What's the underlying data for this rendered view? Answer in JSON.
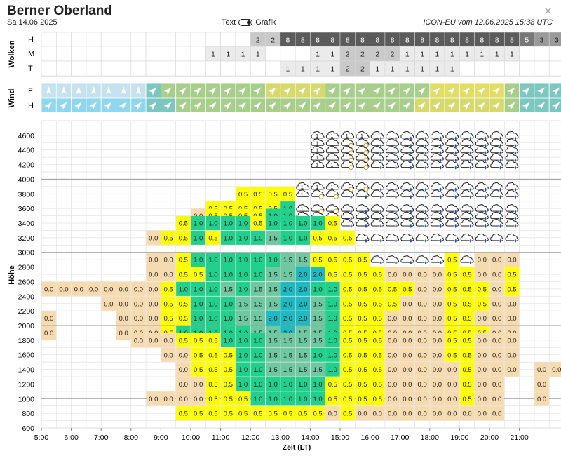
{
  "header": {
    "title": "Berner Oberland",
    "date": "Sa 14.06.2025",
    "toggle_left": "Text",
    "toggle_right": "Grafik",
    "model": "ICON-EU vom 12.06.2025 15:38 UTC",
    "close_label": "×"
  },
  "clouds": {
    "section_label": "Wolken",
    "rows": [
      {
        "label": "H",
        "values": [
          "",
          "",
          "",
          "",
          "",
          "",
          "",
          "",
          "",
          "",
          "",
          "",
          "",
          "",
          "2",
          "2",
          "8",
          "8",
          "8",
          "8",
          "8",
          "8",
          "8",
          "8",
          "8",
          "8",
          "8",
          "8",
          "8",
          "8",
          "8",
          "8",
          "5",
          "3",
          "3"
        ]
      },
      {
        "label": "M",
        "values": [
          "",
          "",
          "",
          "",
          "",
          "",
          "",
          "",
          "",
          "",
          "",
          "1",
          "1",
          "1",
          "1",
          "",
          "",
          "",
          "1",
          "1",
          "2",
          "2",
          "2",
          "2",
          "1",
          "1",
          "1",
          "1",
          "1",
          "1",
          "1",
          "1",
          "",
          "",
          ""
        ]
      },
      {
        "label": "T",
        "values": [
          "",
          "",
          "",
          "",
          "",
          "",
          "",
          "",
          "",
          "",
          "",
          "",
          "",
          "",
          "",
          "",
          "1",
          "1",
          "1",
          "1",
          "2",
          "2",
          "1",
          "1",
          "1",
          "1",
          "1",
          "1",
          "",
          "",
          "",
          "",
          "",
          "",
          ""
        ]
      }
    ]
  },
  "wind": {
    "section_label": "Wind",
    "rows": [
      {
        "label": "F",
        "colors": [
          "#c4e3ef",
          "#c4e3ef",
          "#c4e3ef",
          "#c4e3ef",
          "#c4e3ef",
          "#c4e3ef",
          "#c4e3ef",
          "#7cc8c0",
          "#a7cf8b",
          "#a7cf8b",
          "#a7cf8b",
          "#a7cf8b",
          "#a7cf8b",
          "#a7cf8b",
          "#a7cf8b",
          "#d7d96c",
          "#d7d96c",
          "#d7d96c",
          "#d7d96c",
          "#a7cf8b",
          "#a7cf8b",
          "#a7cf8b",
          "#a7cf8b",
          "#a7cf8b",
          "#a7cf8b",
          "#a7cf8b",
          "#e2dd63",
          "#e2dd63",
          "#e2dd63",
          "#e2dd63",
          "#e2dd63",
          "#a7cf8b",
          "#7cc8c0",
          "#7cc8c0",
          "#7cc8c0"
        ]
      },
      {
        "label": "H",
        "colors": [
          "#8ed7ef",
          "#8ed7ef",
          "#8ed7ef",
          "#8ed7ef",
          "#8ed7ef",
          "#8ed7ef",
          "#8ed7ef",
          "#7cc8c0",
          "#7cc8c0",
          "#a7cf8b",
          "#a7cf8b",
          "#a7cf8b",
          "#a7cf8b",
          "#a7cf8b",
          "#a7cf8b",
          "#a7cf8b",
          "#a7cf8b",
          "#a7cf8b",
          "#a7cf8b",
          "#a7cf8b",
          "#a7cf8b",
          "#a7cf8b",
          "#a7cf8b",
          "#a7cf8b",
          "#a7cf8b",
          "#d7d96c",
          "#d7d96c",
          "#d7d96c",
          "#d7d96c",
          "#d7d96c",
          "#d7d96c",
          "#a7cf8b",
          "#7cc8c0",
          "#7cc8c0",
          "#7cc8c0"
        ]
      }
    ]
  },
  "chart_data": {
    "type": "heatmap",
    "ylabel": "Höhe",
    "xlabel": "Zeit (LT)",
    "x_ticks": [
      "5:00",
      "6:00",
      "7:00",
      "8:00",
      "9:00",
      "10:00",
      "11:00",
      "12:00",
      "13:00",
      "14:00",
      "15:00",
      "16:00",
      "17:00",
      "18:00",
      "19:00",
      "20:00",
      "21:00"
    ],
    "y_ticks": [
      4600,
      4400,
      4200,
      4000,
      3800,
      3600,
      3400,
      3200,
      3000,
      2800,
      2600,
      2400,
      2200,
      2000,
      1800,
      1600,
      1400,
      1200,
      1000,
      800,
      600
    ],
    "colors": {
      "0.0": "#f7dbb0",
      "0.5": "#ffff00",
      "1.0": "#22d08e",
      "1.5": "#6fc8a2",
      "2.0": "#1fb9c1"
    },
    "rows": [
      {
        "alt": 4600,
        "cells": [
          "",
          "",
          "",
          "",
          "",
          "",
          "",
          "",
          "",
          "",
          "",
          "",
          "",
          "",
          "",
          "",
          "",
          "",
          "C",
          "C",
          "C",
          "C",
          "R",
          "R",
          "R",
          "R",
          "R",
          "R",
          "R",
          "R",
          "R",
          "R",
          "",
          "",
          ""
        ]
      },
      {
        "alt": 4500,
        "cells": [
          "",
          "",
          "",
          "",
          "",
          "",
          "",
          "",
          "",
          "",
          "",
          "",
          "",
          "",
          "",
          "",
          "",
          "",
          "C",
          "C",
          "S",
          "S",
          "R",
          "R",
          "R",
          "R",
          "R",
          "R",
          "R",
          "R",
          "R",
          "R",
          "",
          "",
          ""
        ]
      },
      {
        "alt": 4400,
        "cells": [
          "",
          "",
          "",
          "",
          "",
          "",
          "",
          "",
          "",
          "",
          "",
          "",
          "",
          "",
          "",
          "",
          "",
          "",
          "C",
          "C",
          "S",
          "S",
          "R",
          "R",
          "R",
          "R",
          "R",
          "R",
          "R",
          "R",
          "R",
          "R",
          "",
          "",
          ""
        ]
      },
      {
        "alt": 4300,
        "cells": [
          "",
          "",
          "",
          "",
          "",
          "",
          "",
          "",
          "",
          "",
          "",
          "",
          "",
          "",
          "",
          "",
          "",
          "",
          "C",
          "C",
          "S",
          "S",
          "R",
          "R",
          "R",
          "R",
          "R",
          "R",
          "R",
          "R",
          "R",
          "R",
          "",
          "",
          ""
        ]
      },
      {
        "alt": 4200,
        "cells": [
          "",
          "",
          "",
          "",
          "",
          "",
          "",
          "",
          "",
          "",
          "",
          "",
          "",
          "",
          "",
          "",
          "",
          "",
          "C",
          "C",
          "S",
          "S",
          "R",
          "R",
          "R",
          "R",
          "R",
          "R",
          "R",
          "R",
          "R",
          "R",
          "",
          "",
          ""
        ]
      },
      {
        "alt": 3900,
        "cells": [
          "",
          "",
          "",
          "",
          "",
          "",
          "",
          "",
          "",
          "",
          "",
          "",
          "",
          "",
          "",
          "",
          "",
          "L",
          "C",
          "C",
          "S",
          "S",
          "R",
          "R",
          "R",
          "R",
          "R",
          "R",
          "R",
          "R",
          "R",
          "R",
          "",
          "",
          ""
        ]
      },
      {
        "alt": 3800,
        "cells": [
          "",
          "",
          "",
          "",
          "",
          "",
          "",
          "",
          "",
          "",
          "",
          "",
          "",
          "0.5",
          "0.5",
          "0.5",
          "0.5",
          "C",
          "S",
          "S",
          "R",
          "R",
          "R",
          "R",
          "R",
          "R",
          "R",
          "R",
          "R",
          "R",
          "R",
          "R",
          "",
          "",
          ""
        ]
      },
      {
        "alt": 3600,
        "cells": [
          "",
          "",
          "",
          "",
          "",
          "",
          "",
          "",
          "",
          "",
          "",
          "0.5",
          "0.5",
          "0.5",
          "0.5",
          "0.5",
          "1.0",
          "C",
          "S",
          "S",
          "R",
          "R",
          "R",
          "R",
          "R",
          "R",
          "R",
          "R",
          "R",
          "R",
          "R",
          "R",
          "",
          "",
          ""
        ]
      },
      {
        "alt": 3500,
        "cells": [
          "",
          "",
          "",
          "",
          "",
          "",
          "",
          "",
          "",
          "",
          "0.0",
          "0.5",
          "0.5",
          "0.5",
          "0.5",
          "1.0",
          "1.0",
          "S",
          "R",
          "R",
          "R",
          "R",
          "R",
          "R",
          "R",
          "R",
          "R",
          "R",
          "R",
          "R",
          "R",
          "R",
          "",
          "",
          ""
        ]
      },
      {
        "alt": 3400,
        "cells": [
          "",
          "",
          "",
          "",
          "",
          "",
          "",
          "",
          "",
          "0.5",
          "1.0",
          "1.0",
          "1.0",
          "1.0",
          "0.5",
          "1.0",
          "1.0",
          "1.0",
          "1.0",
          "0.5",
          "R",
          "R",
          "R",
          "R",
          "R",
          "R",
          "R",
          "R",
          "R",
          "R",
          "R",
          "R",
          "",
          "",
          ""
        ]
      },
      {
        "alt": 3200,
        "cells": [
          "",
          "",
          "",
          "",
          "",
          "",
          "",
          "0.0",
          "0.5",
          "0.5",
          "1.0",
          "0.5",
          "1.0",
          "1.0",
          "1.0",
          "1.5",
          "1.0",
          "1.0",
          "0.5",
          "0.5",
          "0.5",
          "R",
          "R",
          "R",
          "R",
          "R",
          "R",
          "R",
          "R",
          "R",
          "R",
          "R",
          "",
          "",
          ""
        ]
      },
      {
        "alt": 2900,
        "cells": [
          "",
          "",
          "",
          "",
          "",
          "",
          "",
          "0.0",
          "0.0",
          "0.5",
          "1.0",
          "1.0",
          "1.0",
          "1.0",
          "1.0",
          "1.0",
          "1.5",
          "1.5",
          "0.5",
          "0.5",
          "0.5",
          "0.5",
          "R",
          "R",
          "R",
          "R",
          "R",
          "0.5",
          "R",
          "0.0",
          "0.0",
          "0.0",
          "",
          "",
          ""
        ]
      },
      {
        "alt": 2700,
        "cells": [
          "",
          "",
          "",
          "",
          "",
          "",
          "",
          "0.0",
          "0.0",
          "0.5",
          "0.5",
          "1.0",
          "1.0",
          "1.0",
          "1.0",
          "1.5",
          "1.5",
          "2.0",
          "2.0",
          "0.5",
          "0.5",
          "0.5",
          "0.5",
          "0.0",
          "0.0",
          "0.0",
          "0.0",
          "0.5",
          "0.5",
          "0.0",
          "0.0",
          "0.5",
          "",
          "",
          ""
        ]
      },
      {
        "alt": 2500,
        "cells": [
          "0.0",
          "0.0",
          "0.0",
          "0.0",
          "0.0",
          "0.0",
          "0.0",
          "0.0",
          "0.5",
          "1.0",
          "1.0",
          "1.0",
          "1.5",
          "1.0",
          "1.5",
          "1.5",
          "2.0",
          "2.0",
          "1.0",
          "1.0",
          "0.5",
          "0.5",
          "0.5",
          "0.5",
          "0.5",
          "0.0",
          "0.0",
          "0.5",
          "0.5",
          "0.5",
          "0.0",
          "0.5",
          "",
          "",
          ""
        ]
      },
      {
        "alt": 2300,
        "cells": [
          "",
          "",
          "",
          "",
          "0.0",
          "0.0",
          "0.0",
          "0.0",
          "0.5",
          "0.5",
          "1.0",
          "1.0",
          "1.0",
          "1.5",
          "1.5",
          "1.5",
          "2.0",
          "2.0",
          "1.5",
          "1.0",
          "0.5",
          "0.5",
          "0.5",
          "0.5",
          "0.0",
          "0.0",
          "0.0",
          "0.5",
          "0.5",
          "0.5",
          "0.0",
          "0.0",
          "",
          "",
          ""
        ]
      },
      {
        "alt": 2100,
        "cells": [
          "0.0",
          "",
          "",
          "",
          "",
          "0.0",
          "0.0",
          "0.0",
          "0.5",
          "0.5",
          "1.0",
          "1.0",
          "1.0",
          "1.5",
          "1.5",
          "2.0",
          "2.0",
          "2.0",
          "1.5",
          "1.0",
          "0.5",
          "0.5",
          "0.5",
          "0.0",
          "0.0",
          "0.0",
          "0.0",
          "0.5",
          "0.5",
          "0.0",
          "0.0",
          "0.0",
          "",
          "",
          ""
        ]
      },
      {
        "alt": 1900,
        "cells": [
          "0.0",
          "",
          "",
          "",
          "",
          "0.0",
          "0.0",
          "0.0",
          "0.5",
          "1.0",
          "1.0",
          "1.0",
          "1.0",
          "1.0",
          "1.5",
          "1.5",
          "2.0",
          "1.5",
          "1.5",
          "1.0",
          "0.5",
          "0.5",
          "0.5",
          "0.0",
          "0.0",
          "0.0",
          "0.0",
          "0.5",
          "0.5",
          "0.5",
          "0.0",
          "0.0",
          "",
          "",
          ""
        ]
      },
      {
        "alt": 1800,
        "cells": [
          "",
          "",
          "",
          "",
          "",
          "",
          "0.0",
          "0.0",
          "0.0",
          "0.5",
          "0.5",
          "0.5",
          "1.0",
          "1.0",
          "1.0",
          "1.5",
          "1.5",
          "1.5",
          "1.5",
          "1.0",
          "0.5",
          "0.5",
          "0.5",
          "0.0",
          "0.0",
          "0.0",
          "0.0",
          "0.5",
          "0.5",
          "0.0",
          "0.0",
          "0.0",
          "",
          "",
          ""
        ]
      },
      {
        "alt": 1600,
        "cells": [
          "",
          "",
          "",
          "",
          "",
          "",
          "",
          "",
          "0.0",
          "0.0",
          "0.5",
          "0.5",
          "0.5",
          "1.0",
          "1.0",
          "1.5",
          "1.5",
          "1.5",
          "1.0",
          "1.0",
          "0.5",
          "0.5",
          "0.5",
          "0.0",
          "0.0",
          "0.0",
          "0.0",
          "0.5",
          "0.5",
          "0.0",
          "0.0",
          "0.0",
          "",
          "",
          ""
        ]
      },
      {
        "alt": 1400,
        "cells": [
          "",
          "",
          "",
          "",
          "",
          "",
          "",
          "",
          "",
          "0.0",
          "0.5",
          "0.5",
          "0.5",
          "1.0",
          "1.0",
          "1.5",
          "1.5",
          "1.5",
          "1.5",
          "1.0",
          "0.5",
          "0.5",
          "0.5",
          "0.0",
          "0.0",
          "0.0",
          "0.0",
          "0.0",
          "0.5",
          "0.0",
          "0.0",
          "0.0",
          "",
          "0.0",
          "0.0"
        ]
      },
      {
        "alt": 1200,
        "cells": [
          "",
          "",
          "",
          "",
          "",
          "",
          "",
          "",
          "",
          "0.0",
          "0.0",
          "0.5",
          "0.5",
          "1.0",
          "1.0",
          "1.0",
          "1.0",
          "1.0",
          "1.0",
          "0.5",
          "0.5",
          "0.5",
          "0.5",
          "0.0",
          "0.0",
          "0.0",
          "0.0",
          "0.0",
          "0.5",
          "0.0",
          "0.0",
          "",
          "",
          "0.0",
          ""
        ]
      },
      {
        "alt": 1000,
        "cells": [
          "",
          "",
          "",
          "",
          "",
          "",
          "",
          "0.0",
          "0.0",
          "0.0",
          "0.0",
          "0.5",
          "0.5",
          "0.5",
          "1.0",
          "1.0",
          "1.0",
          "1.0",
          "1.0",
          "0.5",
          "0.5",
          "0.5",
          "0.5",
          "0.0",
          "0.0",
          "0.0",
          "0.0",
          "0.0",
          "0.5",
          "0.0",
          "0.0",
          "",
          "",
          "0.0",
          ""
        ]
      },
      {
        "alt": 800,
        "cells": [
          "",
          "",
          "",
          "",
          "",
          "",
          "",
          "",
          "",
          "0.5",
          "0.5",
          "0.5",
          "0.5",
          "0.5",
          "0.5",
          "0.5",
          "0.5",
          "0.5",
          "0.5",
          "0.0",
          "0.5",
          "0.0",
          "0.0",
          "0.0",
          "0.0",
          "0.0",
          "0.0",
          "0.0",
          "0.0",
          "0.0",
          "0.0",
          "",
          "",
          "",
          ""
        ]
      }
    ]
  }
}
